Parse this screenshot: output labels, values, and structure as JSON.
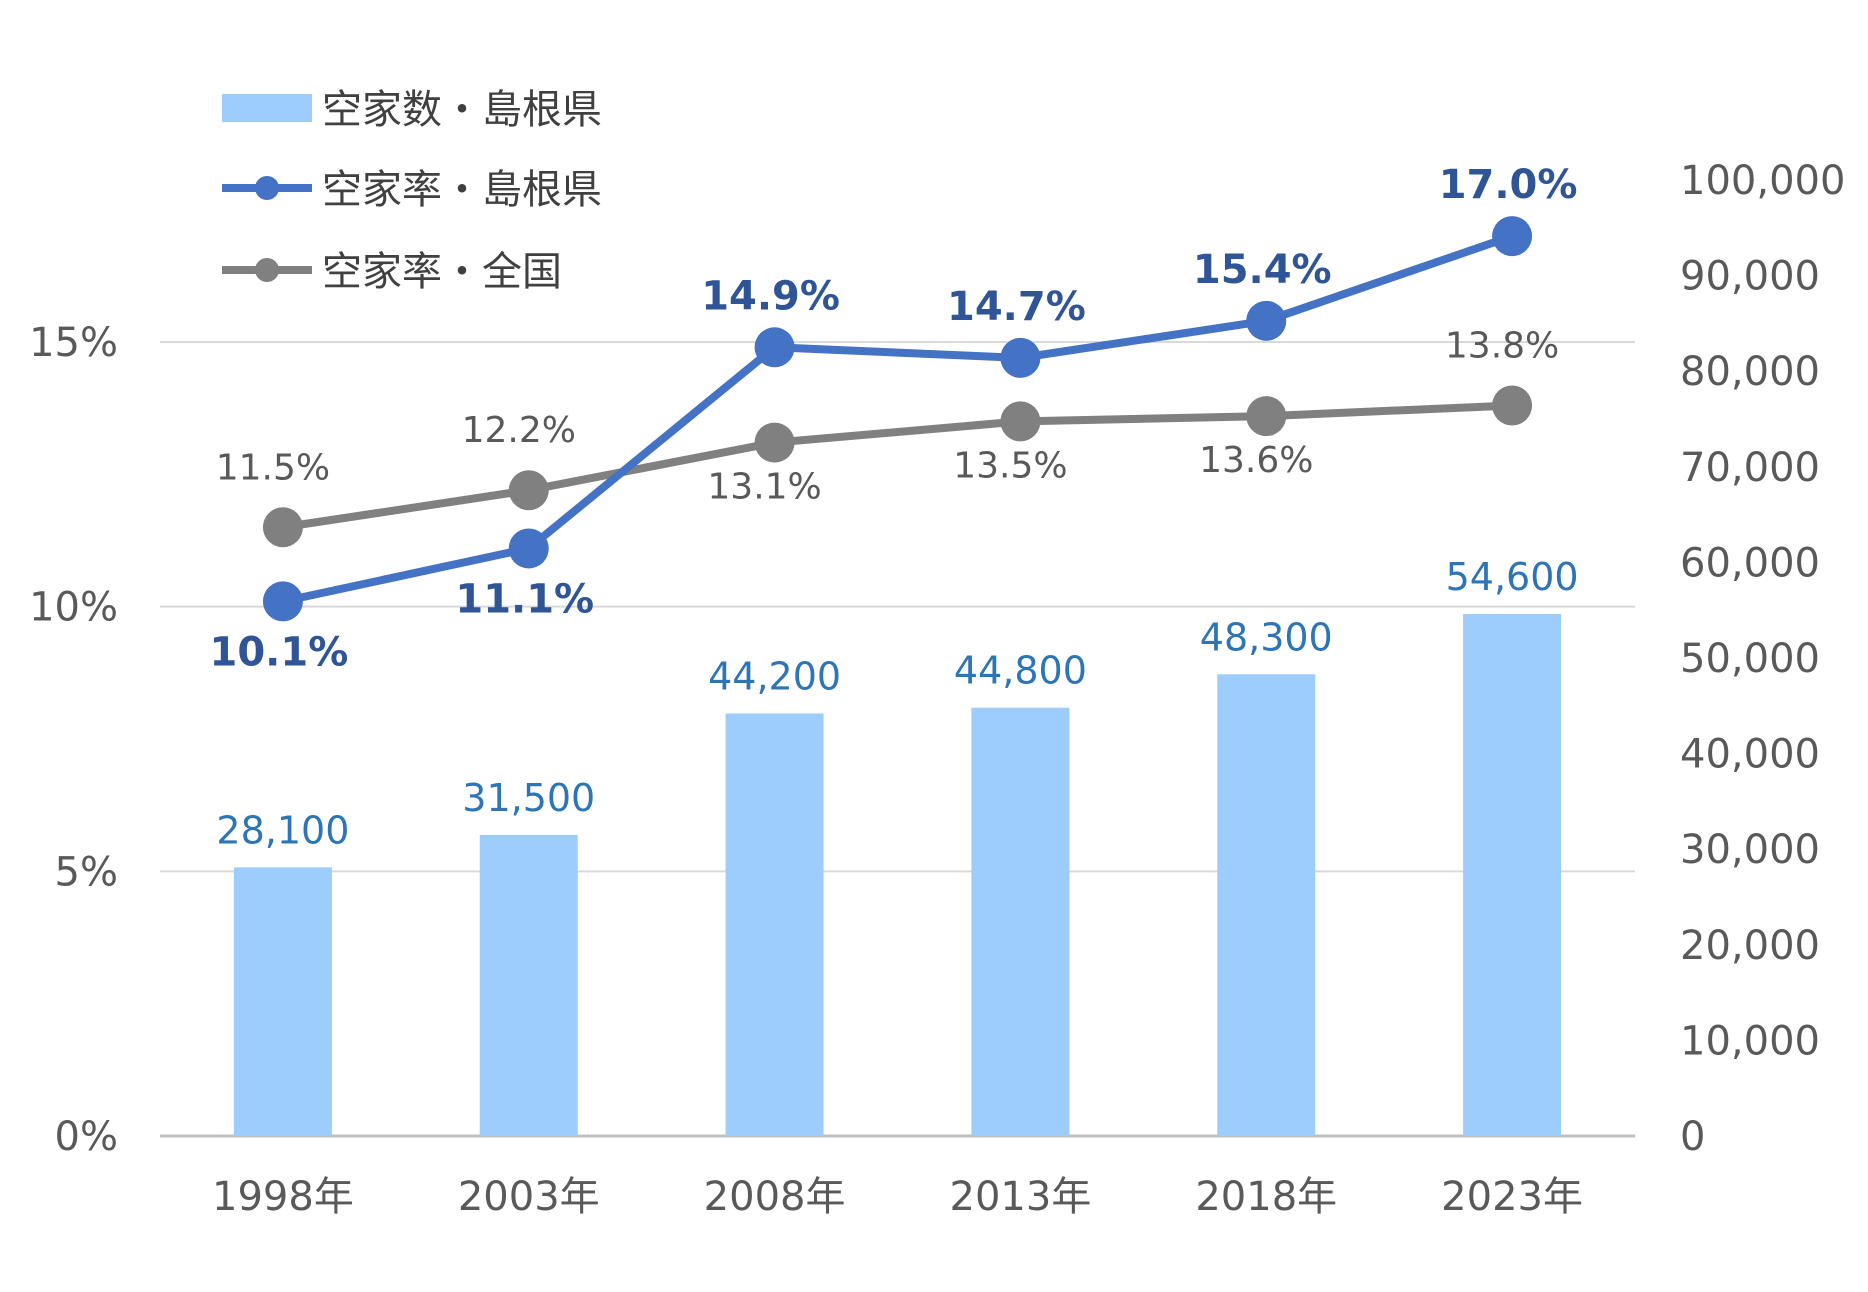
{
  "chart_data": {
    "type": "bar",
    "categories": [
      "1998年",
      "2003年",
      "2008年",
      "2013年",
      "2018年",
      "2023年"
    ],
    "series": [
      {
        "name": "空家数・島根県",
        "type": "bar",
        "axis": "right",
        "color": "#9dcdfd",
        "values": [
          28100,
          31500,
          44200,
          44800,
          48300,
          54600
        ],
        "labels": [
          "28,100",
          "31,500",
          "44,200",
          "44,800",
          "48,300",
          "54,600"
        ]
      },
      {
        "name": "空家率・島根県",
        "type": "line",
        "axis": "left",
        "color": "#4472c4",
        "values": [
          10.1,
          11.1,
          14.9,
          14.7,
          15.4,
          17.0
        ],
        "labels": [
          "10.1%",
          "11.1%",
          "14.9%",
          "14.7%",
          "15.4%",
          "17.0%"
        ]
      },
      {
        "name": "空家率・全国",
        "type": "line",
        "axis": "left",
        "color": "#808080",
        "values": [
          11.5,
          12.2,
          13.1,
          13.5,
          13.6,
          13.8
        ],
        "labels": [
          "11.5%",
          "12.2%",
          "13.1%",
          "13.5%",
          "13.6%",
          "13.8%"
        ]
      }
    ],
    "y_left": {
      "range": [
        0,
        15
      ],
      "ticks": [
        "0%",
        "5%",
        "10%",
        "15%"
      ]
    },
    "y_right": {
      "range": [
        0,
        100000
      ],
      "ticks": [
        "0",
        "10,000",
        "20,000",
        "30,000",
        "40,000",
        "50,000",
        "60,000",
        "70,000",
        "80,000",
        "90,000",
        "100,000"
      ]
    },
    "grid": true,
    "legend_position": "top-left",
    "title": "",
    "xlabel": "",
    "ylabel": ""
  }
}
